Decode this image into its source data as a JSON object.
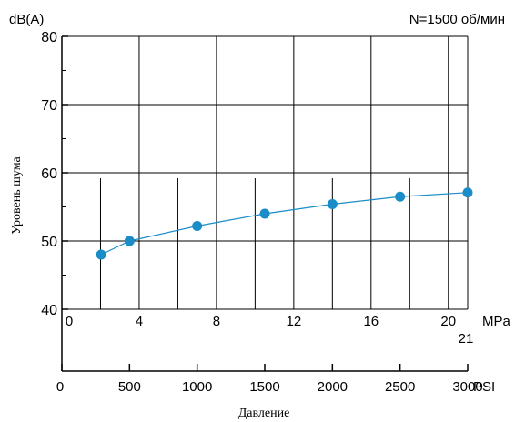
{
  "chart_data": {
    "type": "line",
    "unit_label": "dB(A)",
    "ylabel": "Уровень шума",
    "xlabel": "Давление",
    "annotation": "N=1500 об/мин",
    "ylim": [
      40,
      80
    ],
    "yticks": [
      "40",
      "50",
      "60",
      "70",
      "80"
    ],
    "mpa_axis": {
      "unit": "MPa",
      "range": [
        0,
        21
      ],
      "tick_values": [
        0,
        4,
        8,
        12,
        16,
        20
      ],
      "tick_labels": [
        "0",
        "4",
        "8",
        "12",
        "16",
        "20"
      ],
      "extra_label": "21"
    },
    "psi_axis": {
      "unit": "PSI",
      "range": [
        0,
        3000
      ],
      "tick_values": [
        0,
        500,
        1000,
        1500,
        2000,
        2500,
        3000
      ],
      "tick_labels": [
        "0",
        "500",
        "1000",
        "1500",
        "2000",
        "2500",
        "3000"
      ]
    },
    "series": [
      {
        "x_psi": [
          290,
          500,
          1000,
          1500,
          2000,
          2500,
          3000
        ],
        "y": [
          48,
          50,
          52.2,
          54,
          55.4,
          56.5,
          57.1
        ]
      }
    ],
    "grid": true,
    "colors": {
      "series": "#1a8cc8",
      "grid": "#000000"
    }
  }
}
